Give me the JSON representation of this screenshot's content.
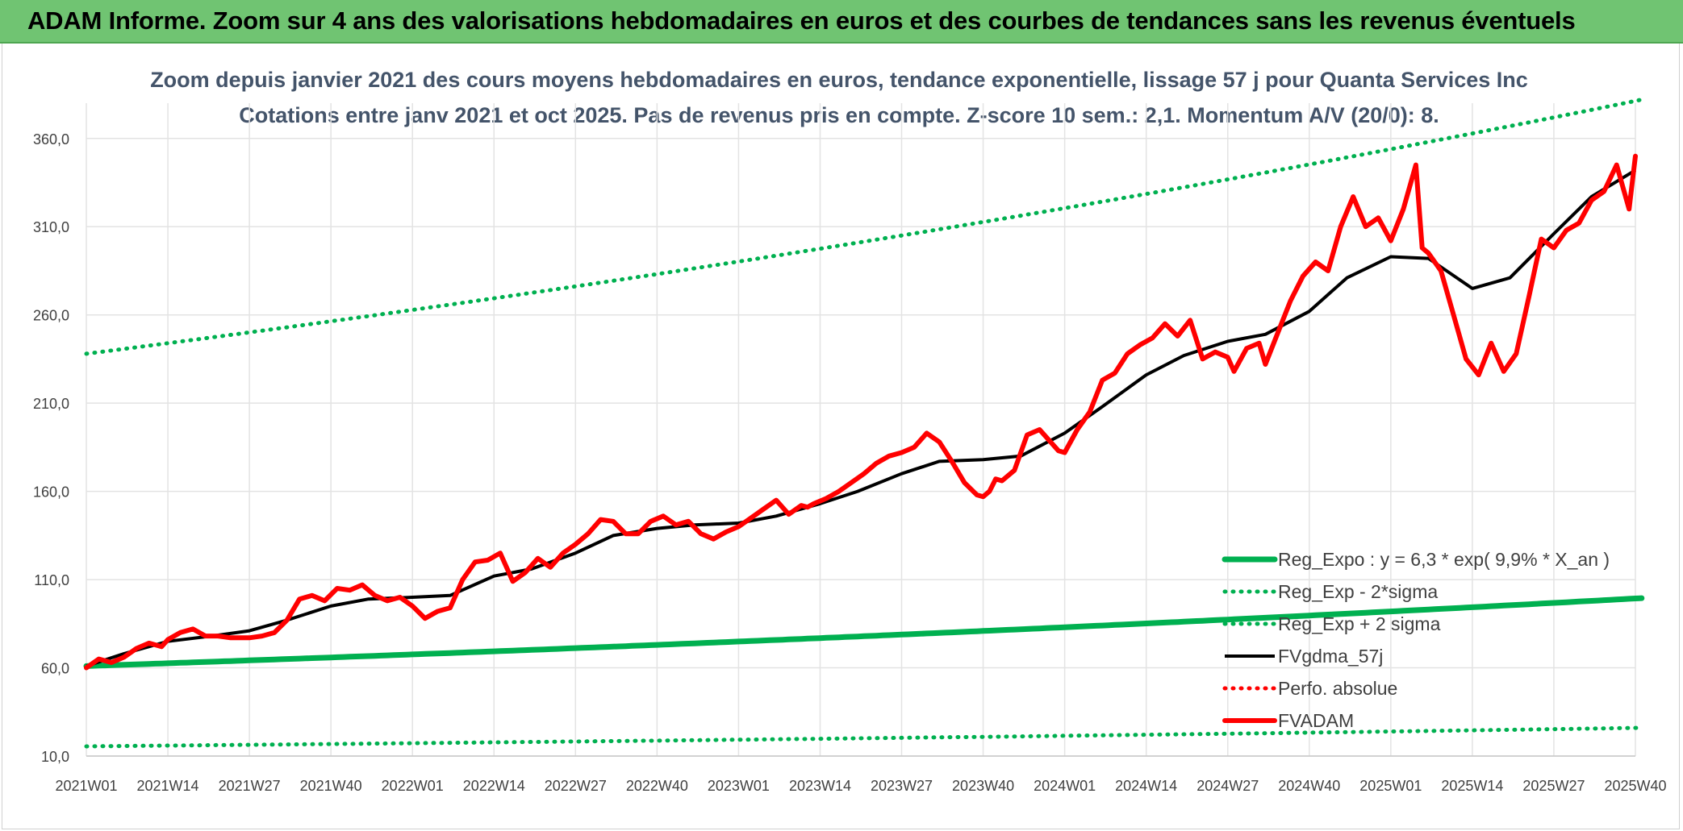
{
  "header": {
    "title": "ADAM Informe. Zoom sur 4 ans des valorisations hebdomadaires en euros et des courbes de tendances sans les revenus éventuels"
  },
  "chart_data": {
    "type": "line",
    "title": "Zoom depuis janvier 2021 des cours moyens hebdomadaires en euros, tendance exponentielle, lissage 57 j pour Quanta Services Inc",
    "subtitle": "Cotations entre janv 2021 et oct 2025. Pas de revenus pris en compte. Z-score 10 sem.: 2,1. Momentum A/V (20/0): 8.",
    "xlabel": "",
    "ylabel": "",
    "ylim": [
      10,
      380
    ],
    "yticks": [
      10,
      60,
      110,
      160,
      210,
      260,
      310,
      360
    ],
    "ytick_labels": [
      "10,0",
      "60,0",
      "110,0",
      "160,0",
      "210,0",
      "260,0",
      "310,0",
      "360,0"
    ],
    "x_range_weeks": [
      0,
      248
    ],
    "xticks": [
      0,
      13,
      26,
      39,
      52,
      65,
      78,
      91,
      104,
      117,
      130,
      143,
      156,
      169,
      182,
      195,
      208,
      221,
      234,
      247
    ],
    "xtick_labels": [
      "2021W01",
      "2021W14",
      "2021W27",
      "2021W40",
      "2022W01",
      "2022W14",
      "2022W27",
      "2022W40",
      "2023W01",
      "2023W14",
      "2023W27",
      "2023W40",
      "2024W01",
      "2024W14",
      "2024W27",
      "2024W40",
      "2025W01",
      "2025W14",
      "2025W27",
      "2025W40"
    ],
    "grid": true,
    "legend_position": "bottom-right",
    "colors": {
      "green": "#00b050",
      "red": "#ff0000",
      "black": "#000000",
      "grid": "#e3e3e3",
      "banner": "#70c472"
    },
    "series": [
      {
        "name": "Reg_Expo : y = 6,3 * exp( 9,9% *  X_an )",
        "style": "solid",
        "color": "#00b050",
        "x": [
          0,
          248
        ],
        "values": [
          61,
          99.5
        ],
        "curve": "exponential"
      },
      {
        "name": "Reg_Exp - 2*sigma",
        "style": "dotted",
        "color": "#00b050",
        "x": [
          0,
          248
        ],
        "values": [
          15.5,
          26
        ],
        "curve": "exponential"
      },
      {
        "name": "Reg_Exp + 2 sigma",
        "style": "dotted",
        "color": "#00b050",
        "x": [
          0,
          248
        ],
        "values": [
          238,
          382
        ],
        "curve": "exponential"
      },
      {
        "name": "FVgdma_57j",
        "style": "solid",
        "color": "#000000",
        "x": [
          0,
          6,
          13,
          20,
          26,
          32,
          39,
          45,
          52,
          58,
          65,
          71,
          78,
          84,
          91,
          97,
          104,
          110,
          117,
          123,
          130,
          136,
          143,
          149,
          156,
          162,
          169,
          175,
          182,
          188,
          195,
          201,
          208,
          214,
          221,
          227,
          234,
          240,
          247
        ],
        "values": [
          61,
          68,
          75,
          78,
          81,
          87,
          95,
          99,
          100,
          101,
          112,
          116,
          125,
          135,
          139,
          141,
          142,
          146,
          153,
          160,
          170,
          177,
          178,
          180,
          193,
          208,
          226,
          237,
          245,
          249,
          262,
          281,
          293,
          292,
          275,
          281,
          306,
          327,
          342
        ]
      },
      {
        "name": "Perfo. absolue",
        "style": "dotted",
        "color": "#ff0000",
        "x": [],
        "values": []
      },
      {
        "name": "FVADAM",
        "style": "solid",
        "color": "#ff0000",
        "x": [
          0,
          2,
          4,
          6,
          8,
          10,
          12,
          13,
          15,
          17,
          19,
          21,
          23,
          26,
          28,
          30,
          32,
          34,
          36,
          38,
          40,
          42,
          44,
          46,
          48,
          50,
          52,
          54,
          56,
          58,
          60,
          62,
          64,
          66,
          68,
          70,
          72,
          74,
          76,
          78,
          80,
          82,
          84,
          86,
          88,
          90,
          92,
          94,
          96,
          98,
          100,
          102,
          104,
          106,
          108,
          110,
          112,
          114,
          115,
          116,
          118,
          120,
          122,
          124,
          126,
          128,
          130,
          132,
          134,
          136,
          138,
          140,
          142,
          143,
          144,
          145,
          146,
          148,
          150,
          152,
          154,
          155,
          156,
          158,
          160,
          162,
          164,
          166,
          168,
          170,
          172,
          174,
          176,
          178,
          180,
          182,
          183,
          185,
          187,
          188,
          190,
          192,
          194,
          196,
          198,
          200,
          202,
          204,
          206,
          208,
          210,
          212,
          213,
          214,
          216,
          218,
          220,
          222,
          224,
          226,
          228,
          230,
          232,
          234,
          236,
          238,
          240,
          242,
          244,
          246,
          247
        ],
        "values": [
          60,
          65,
          63,
          66,
          71,
          74,
          72,
          76,
          80,
          82,
          78,
          78,
          77,
          77,
          78,
          80,
          87,
          99,
          101,
          98,
          105,
          104,
          107,
          101,
          98,
          100,
          95,
          88,
          92,
          94,
          110,
          120,
          121,
          125,
          109,
          114,
          122,
          117,
          125,
          130,
          136,
          144,
          143,
          136,
          136,
          143,
          146,
          141,
          143,
          136,
          133,
          137,
          140,
          145,
          150,
          155,
          147,
          152,
          151,
          153,
          156,
          160,
          165,
          170,
          176,
          180,
          182,
          185,
          193,
          188,
          177,
          165,
          158,
          157,
          160,
          167,
          166,
          172,
          192,
          195,
          187,
          183,
          182,
          195,
          205,
          223,
          227,
          238,
          243,
          247,
          255,
          248,
          257,
          235,
          239,
          236,
          228,
          241,
          244,
          232,
          250,
          268,
          282,
          290,
          285,
          310,
          327,
          310,
          315,
          302,
          320,
          345,
          298,
          295,
          285,
          260,
          235,
          226,
          244,
          228,
          238,
          270,
          303,
          298,
          308,
          312,
          325,
          330,
          345,
          320,
          350
        ]
      }
    ]
  }
}
